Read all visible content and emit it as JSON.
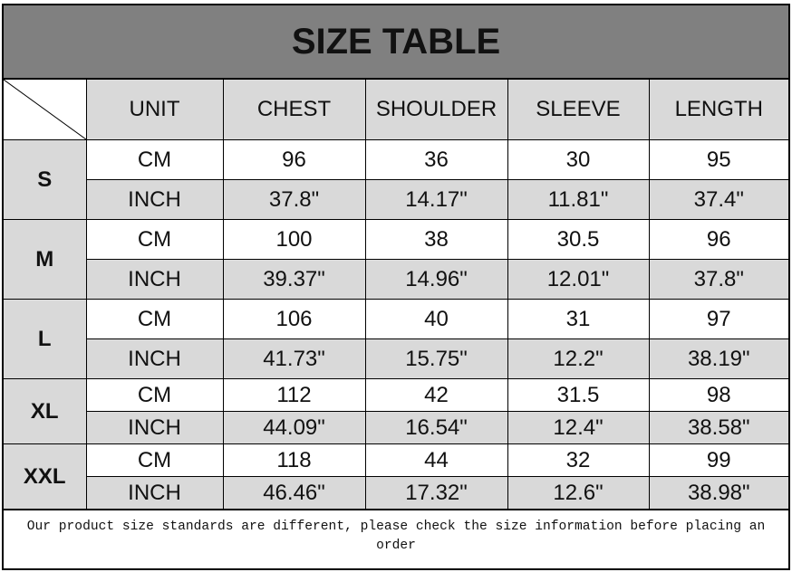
{
  "title": "SIZE TABLE",
  "headers": [
    "UNIT",
    "CHEST",
    "SHOULDER",
    "SLEEVE",
    "LENGTH"
  ],
  "colors": {
    "title_bg": "#808080",
    "shaded_cell": "#d9d9d9"
  },
  "sizes": [
    {
      "size": "S",
      "rows": [
        [
          "CM",
          "96",
          "36",
          "30",
          "95"
        ],
        [
          "INCH",
          "37.8\"",
          "14.17\"",
          "11.81\"",
          "37.4\""
        ]
      ]
    },
    {
      "size": "M",
      "rows": [
        [
          "CM",
          "100",
          "38",
          "30.5",
          "96"
        ],
        [
          "INCH",
          "39.37\"",
          "14.96\"",
          "12.01\"",
          "37.8\""
        ]
      ]
    },
    {
      "size": "L",
      "rows": [
        [
          "CM",
          "106",
          "40",
          "31",
          "97"
        ],
        [
          "INCH",
          "41.73\"",
          "15.75\"",
          "12.2\"",
          "38.19\""
        ]
      ]
    },
    {
      "size": "XL",
      "rows": [
        [
          "CM",
          "112",
          "42",
          "31.5",
          "98"
        ],
        [
          "INCH",
          "44.09\"",
          "16.54\"",
          "12.4\"",
          "38.58\""
        ]
      ]
    },
    {
      "size": "XXL",
      "rows": [
        [
          "CM",
          "118",
          "44",
          "32",
          "99"
        ],
        [
          "INCH",
          "46.46\"",
          "17.32\"",
          "12.6\"",
          "38.98\""
        ]
      ]
    }
  ],
  "footer": {
    "line1": "Our product size standards are different, please check the size information before placing an",
    "line2": "order"
  }
}
